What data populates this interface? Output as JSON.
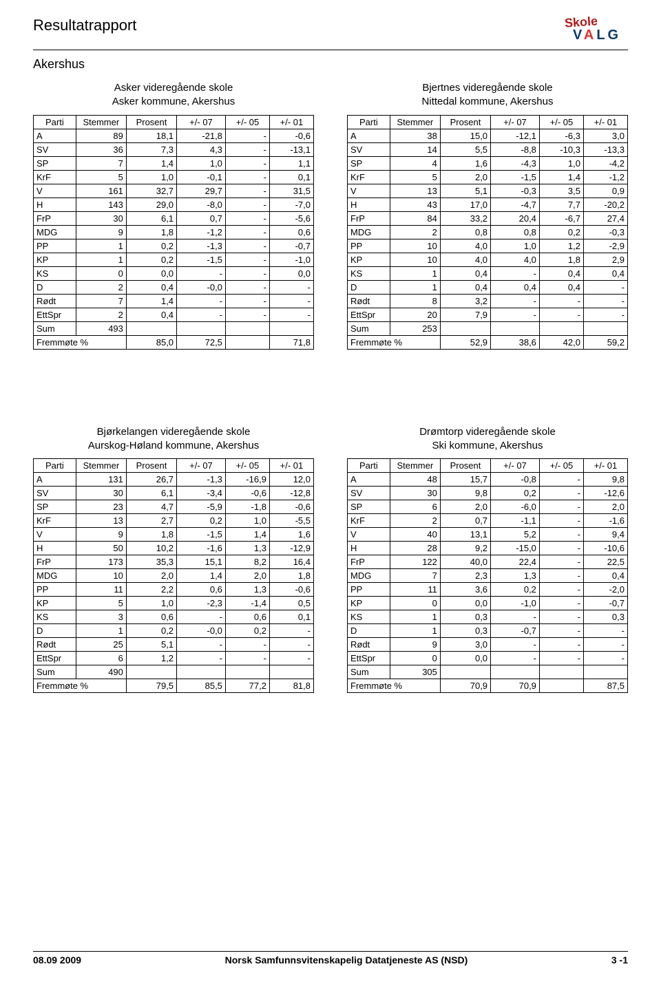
{
  "report_title": "Resultatrapport",
  "region": "Akershus",
  "logo": {
    "line1": "Skole",
    "line2_pre": "V",
    "line2_a": "A",
    "line2_post": "LG"
  },
  "columns": [
    "Parti",
    "Stemmer",
    "Prosent",
    "+/- 07",
    "+/- 05",
    "+/- 01"
  ],
  "sum_label": "Sum",
  "fremmote_label": "Fremmøte %",
  "footer": {
    "left": "08.09 2009",
    "center": "Norsk Samfunnsvitenskapelig Datatjeneste AS (NSD)",
    "right": "3 -1"
  },
  "tables": [
    {
      "school": "Asker videregående skole",
      "kommune": "Asker kommune, Akershus",
      "rows": [
        [
          "A",
          "89",
          "18,1",
          "-21,8",
          "-",
          "-0,6"
        ],
        [
          "SV",
          "36",
          "7,3",
          "4,3",
          "-",
          "-13,1"
        ],
        [
          "SP",
          "7",
          "1,4",
          "1,0",
          "-",
          "1,1"
        ],
        [
          "KrF",
          "5",
          "1,0",
          "-0,1",
          "-",
          "0,1"
        ],
        [
          "V",
          "161",
          "32,7",
          "29,7",
          "-",
          "31,5"
        ],
        [
          "H",
          "143",
          "29,0",
          "-8,0",
          "-",
          "-7,0"
        ],
        [
          "FrP",
          "30",
          "6,1",
          "0,7",
          "-",
          "-5,6"
        ],
        [
          "MDG",
          "9",
          "1,8",
          "-1,2",
          "-",
          "0,6"
        ],
        [
          "PP",
          "1",
          "0,2",
          "-1,3",
          "-",
          "-0,7"
        ],
        [
          "KP",
          "1",
          "0,2",
          "-1,5",
          "-",
          "-1,0"
        ],
        [
          "KS",
          "0",
          "0,0",
          "-",
          "-",
          "0,0"
        ],
        [
          "D",
          "2",
          "0,4",
          "-0,0",
          "-",
          "-"
        ],
        [
          "Rødt",
          "7",
          "1,4",
          "-",
          "-",
          "-"
        ],
        [
          "EttSpr",
          "2",
          "0,4",
          "-",
          "-",
          "-"
        ]
      ],
      "sum": "493",
      "fremmote": [
        "",
        "85,0",
        "72,5",
        "",
        "71,8"
      ]
    },
    {
      "school": "Bjertnes videregående skole",
      "kommune": "Nittedal kommune, Akershus",
      "rows": [
        [
          "A",
          "38",
          "15,0",
          "-12,1",
          "-6,3",
          "3,0"
        ],
        [
          "SV",
          "14",
          "5,5",
          "-8,8",
          "-10,3",
          "-13,3"
        ],
        [
          "SP",
          "4",
          "1,6",
          "-4,3",
          "1,0",
          "-4,2"
        ],
        [
          "KrF",
          "5",
          "2,0",
          "-1,5",
          "1,4",
          "-1,2"
        ],
        [
          "V",
          "13",
          "5,1",
          "-0,3",
          "3,5",
          "0,9"
        ],
        [
          "H",
          "43",
          "17,0",
          "-4,7",
          "7,7",
          "-20,2"
        ],
        [
          "FrP",
          "84",
          "33,2",
          "20,4",
          "-6,7",
          "27,4"
        ],
        [
          "MDG",
          "2",
          "0,8",
          "0,8",
          "0,2",
          "-0,3"
        ],
        [
          "PP",
          "10",
          "4,0",
          "1,0",
          "1,2",
          "-2,9"
        ],
        [
          "KP",
          "10",
          "4,0",
          "4,0",
          "1,8",
          "2,9"
        ],
        [
          "KS",
          "1",
          "0,4",
          "-",
          "0,4",
          "0,4"
        ],
        [
          "D",
          "1",
          "0,4",
          "0,4",
          "0,4",
          "-"
        ],
        [
          "Rødt",
          "8",
          "3,2",
          "-",
          "-",
          "-"
        ],
        [
          "EttSpr",
          "20",
          "7,9",
          "-",
          "-",
          "-"
        ]
      ],
      "sum": "253",
      "fremmote": [
        "",
        "52,9",
        "38,6",
        "42,0",
        "59,2"
      ]
    },
    {
      "school": "Bjørkelangen videregående skole",
      "kommune": "Aurskog-Høland kommune, Akershus",
      "rows": [
        [
          "A",
          "131",
          "26,7",
          "-1,3",
          "-16,9",
          "12,0"
        ],
        [
          "SV",
          "30",
          "6,1",
          "-3,4",
          "-0,6",
          "-12,8"
        ],
        [
          "SP",
          "23",
          "4,7",
          "-5,9",
          "-1,8",
          "-0,6"
        ],
        [
          "KrF",
          "13",
          "2,7",
          "0,2",
          "1,0",
          "-5,5"
        ],
        [
          "V",
          "9",
          "1,8",
          "-1,5",
          "1,4",
          "1,6"
        ],
        [
          "H",
          "50",
          "10,2",
          "-1,6",
          "1,3",
          "-12,9"
        ],
        [
          "FrP",
          "173",
          "35,3",
          "15,1",
          "8,2",
          "16,4"
        ],
        [
          "MDG",
          "10",
          "2,0",
          "1,4",
          "2,0",
          "1,8"
        ],
        [
          "PP",
          "11",
          "2,2",
          "0,6",
          "1,3",
          "-0,6"
        ],
        [
          "KP",
          "5",
          "1,0",
          "-2,3",
          "-1,4",
          "0,5"
        ],
        [
          "KS",
          "3",
          "0,6",
          "-",
          "0,6",
          "0,1"
        ],
        [
          "D",
          "1",
          "0,2",
          "-0,0",
          "0,2",
          "-"
        ],
        [
          "Rødt",
          "25",
          "5,1",
          "-",
          "-",
          "-"
        ],
        [
          "EttSpr",
          "6",
          "1,2",
          "-",
          "-",
          "-"
        ]
      ],
      "sum": "490",
      "fremmote": [
        "79,5",
        "85,5",
        "77,2",
        "",
        "81,8"
      ]
    },
    {
      "school": "Drømtorp videregående skole",
      "kommune": "Ski kommune, Akershus",
      "rows": [
        [
          "A",
          "48",
          "15,7",
          "-0,8",
          "-",
          "9,8"
        ],
        [
          "SV",
          "30",
          "9,8",
          "0,2",
          "-",
          "-12,6"
        ],
        [
          "SP",
          "6",
          "2,0",
          "-6,0",
          "-",
          "2,0"
        ],
        [
          "KrF",
          "2",
          "0,7",
          "-1,1",
          "-",
          "-1,6"
        ],
        [
          "V",
          "40",
          "13,1",
          "5,2",
          "-",
          "9,4"
        ],
        [
          "H",
          "28",
          "9,2",
          "-15,0",
          "-",
          "-10,6"
        ],
        [
          "FrP",
          "122",
          "40,0",
          "22,4",
          "-",
          "22,5"
        ],
        [
          "MDG",
          "7",
          "2,3",
          "1,3",
          "-",
          "0,4"
        ],
        [
          "PP",
          "11",
          "3,6",
          "0,2",
          "-",
          "-2,0"
        ],
        [
          "KP",
          "0",
          "0,0",
          "-1,0",
          "-",
          "-0,7"
        ],
        [
          "KS",
          "1",
          "0,3",
          "-",
          "-",
          "0,3"
        ],
        [
          "D",
          "1",
          "0,3",
          "-0,7",
          "-",
          "-"
        ],
        [
          "Rødt",
          "9",
          "3,0",
          "-",
          "-",
          "-"
        ],
        [
          "EttSpr",
          "0",
          "0,0",
          "-",
          "-",
          "-"
        ]
      ],
      "sum": "305",
      "fremmote": [
        "",
        "70,9",
        "70,9",
        "",
        "87,5"
      ]
    }
  ]
}
